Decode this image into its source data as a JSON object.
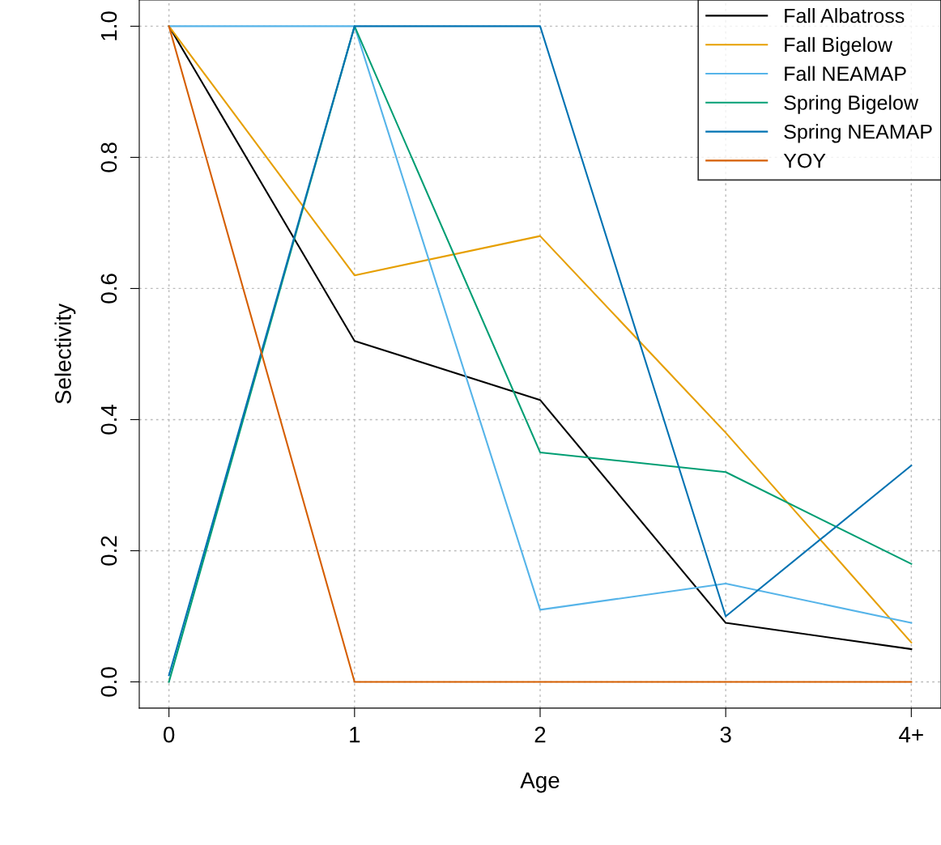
{
  "chart_data": {
    "type": "line",
    "xlabel": "Age",
    "ylabel": "Selectivity",
    "categories": [
      "0",
      "1",
      "2",
      "3",
      "4+"
    ],
    "series": [
      {
        "name": "Fall Albatross",
        "color": "#000000",
        "values": [
          1.0,
          0.52,
          0.43,
          0.09,
          0.05
        ]
      },
      {
        "name": "Fall Bigelow",
        "color": "#e69f00",
        "values": [
          1.0,
          0.62,
          0.68,
          0.38,
          0.06
        ]
      },
      {
        "name": "Fall NEAMAP",
        "color": "#56b4e9",
        "values": [
          1.0,
          1.0,
          0.11,
          0.15,
          0.09
        ]
      },
      {
        "name": "Spring Bigelow",
        "color": "#009e73",
        "values": [
          0.0,
          1.0,
          0.35,
          0.32,
          0.18
        ]
      },
      {
        "name": "Spring NEAMAP",
        "color": "#0072b2",
        "values": [
          0.01,
          1.0,
          1.0,
          0.1,
          0.33
        ]
      },
      {
        "name": "YOY",
        "color": "#d55e00",
        "values": [
          1.0,
          0.0,
          0.0,
          0.0,
          0.0
        ]
      }
    ],
    "ylim": [
      -0.04,
      1.04
    ],
    "yticks": [
      {
        "value": 0,
        "label": "0.0"
      },
      {
        "value": 0.2,
        "label": "0.2"
      },
      {
        "value": 0.4,
        "label": "0.4"
      },
      {
        "value": 0.6,
        "label": "0.6"
      },
      {
        "value": 0.8,
        "label": "0.8"
      },
      {
        "value": 1.0,
        "label": "1.0"
      }
    ],
    "grid": true,
    "legend": "top right",
    "marker": "none",
    "line_style": "solid"
  }
}
